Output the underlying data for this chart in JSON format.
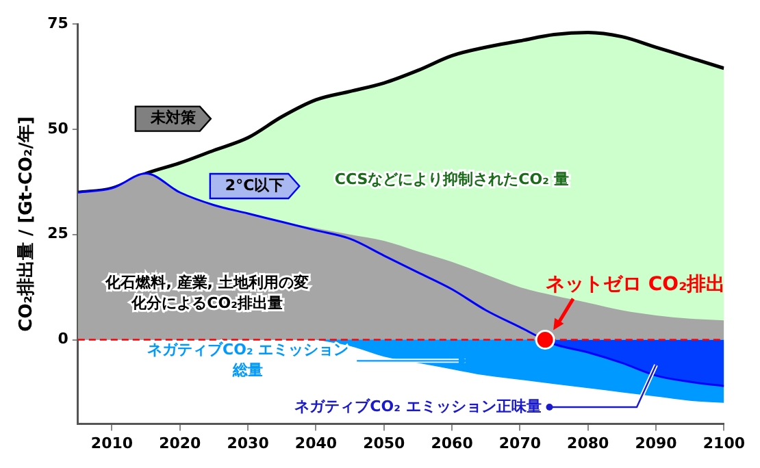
{
  "chart_data": {
    "type": "area",
    "ylabel": "CO₂排出量 / [Gt-CO₂/年]",
    "x": [
      2005,
      2010,
      2015,
      2020,
      2025,
      2030,
      2035,
      2040,
      2045,
      2050,
      2055,
      2060,
      2065,
      2070,
      2075,
      2080,
      2085,
      2090,
      2095,
      2100
    ],
    "series": [
      {
        "name": "未対策",
        "color": "#ccffcc",
        "values": [
          35,
          36,
          39.5,
          42,
          45,
          48,
          53,
          57,
          59,
          61,
          64,
          67.5,
          69.5,
          71,
          72.5,
          73,
          72,
          69.5,
          67,
          64.5
        ]
      },
      {
        "name": "化石燃料, 産業, 土地利用の変化分によるCO₂排出量",
        "color": "#a6a6a6",
        "values": [
          35,
          36,
          39.5,
          35,
          32,
          30,
          28,
          26.5,
          25,
          23.5,
          21,
          18.5,
          15.5,
          12.5,
          10.5,
          8.8,
          7,
          5.8,
          5,
          4.6
        ]
      },
      {
        "name": "ネガティブCO₂ エミッション総量",
        "color": "#0099ff",
        "values": [
          null,
          null,
          null,
          null,
          null,
          null,
          null,
          0,
          -1.5,
          -4,
          -5.5,
          -7,
          -8.5,
          -9.5,
          -10.5,
          -11.5,
          -12.5,
          -13.5,
          -14.5,
          -15
        ]
      },
      {
        "name": "2°C以下",
        "type": "line",
        "color": "#0000ff",
        "values": [
          35,
          36,
          39.5,
          35,
          32,
          30,
          28,
          26,
          24,
          20,
          16,
          12,
          7,
          3,
          -1,
          -3,
          -5.5,
          -8.5,
          -10,
          -11
        ]
      }
    ],
    "annotations": [
      "CCSなどにより抑制されたCO₂ 量",
      "ネガティブCO₂ エミッション正味量",
      {
        "text": "ネットゼロ CO₂排出",
        "x": 2073.7,
        "y": 0
      }
    ],
    "ref_lines": [
      {
        "axis": "y",
        "value": 0,
        "color": "#ff0000",
        "line_style": "dashed"
      }
    ],
    "xlim": [
      2005,
      2100
    ],
    "xticks": [
      2010,
      2020,
      2030,
      2040,
      2050,
      2060,
      2070,
      2080,
      2090,
      2100
    ],
    "ylim": [
      -20,
      75
    ],
    "yticks": [
      0,
      25,
      50,
      75
    ],
    "grid": false,
    "legend": false
  }
}
